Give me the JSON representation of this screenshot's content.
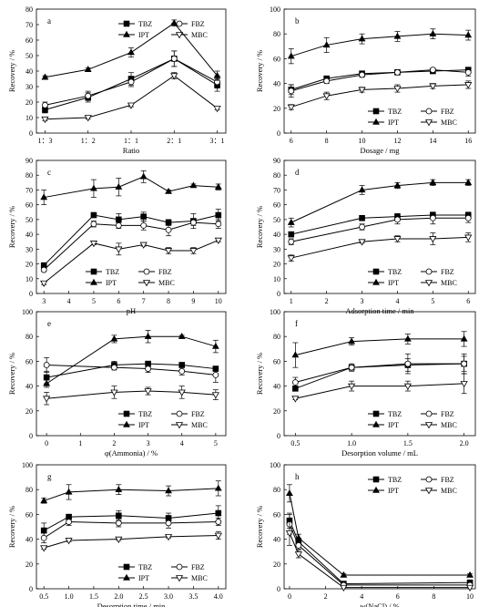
{
  "legend_order": [
    "TBZ",
    "FBZ",
    "IPT",
    "MBC"
  ],
  "chart_data": [
    {
      "type": "line",
      "panel": "a",
      "xlabel": "Ratio",
      "ylabel": "Recovery / %",
      "categories": [
        "1：3",
        "1：2",
        "1：1",
        "2：1",
        "3：1"
      ],
      "x": [
        0,
        1,
        2,
        3,
        4
      ],
      "xlim": [
        -0.2,
        4.2
      ],
      "xticks": [
        0,
        1,
        2,
        3,
        4
      ],
      "xtick_labels": [
        "1：3",
        "1：2",
        "1：1",
        "2：1",
        "3：1"
      ],
      "ylim": [
        0,
        80
      ],
      "yticks": [
        0,
        10,
        20,
        30,
        40,
        50,
        60,
        70,
        80
      ],
      "series": [
        {
          "name": "TBZ",
          "marker": "square-filled",
          "values": [
            15,
            23,
            35,
            48,
            31
          ],
          "err": [
            2,
            3,
            4,
            5,
            4
          ]
        },
        {
          "name": "FBZ",
          "marker": "circle-open",
          "values": [
            18,
            24,
            33,
            48,
            33
          ],
          "err": [
            2,
            3,
            3,
            5,
            4
          ]
        },
        {
          "name": "IPT",
          "marker": "triangle-filled",
          "values": [
            36,
            41,
            52,
            71,
            37
          ],
          "err": [
            1,
            1,
            3,
            2,
            3
          ]
        },
        {
          "name": "MBC",
          "marker": "triangle-down-open",
          "values": [
            9,
            10,
            18,
            37,
            16
          ],
          "err": [
            1,
            1,
            1,
            2,
            1
          ]
        }
      ],
      "legend": "top-right"
    },
    {
      "type": "line",
      "panel": "b",
      "xlabel": "Dosage / mg",
      "ylabel": "Recovery / %",
      "x": [
        6,
        8,
        10,
        12,
        14,
        16
      ],
      "xlim": [
        5.6,
        16.4
      ],
      "xticks": [
        6,
        8,
        10,
        12,
        14,
        16
      ],
      "xtick_labels": [
        "6",
        "8",
        "10",
        "12",
        "14",
        "16"
      ],
      "ylim": [
        0,
        100
      ],
      "yticks": [
        0,
        20,
        40,
        60,
        80,
        100
      ],
      "series": [
        {
          "name": "TBZ",
          "marker": "square-filled",
          "values": [
            35,
            44,
            48,
            49,
            50,
            51
          ],
          "err": [
            4,
            2,
            2,
            2,
            2,
            2
          ]
        },
        {
          "name": "FBZ",
          "marker": "circle-open",
          "values": [
            34,
            42,
            47,
            49,
            51,
            49
          ],
          "err": [
            5,
            2,
            2,
            2,
            1,
            3
          ]
        },
        {
          "name": "IPT",
          "marker": "triangle-filled",
          "values": [
            62,
            71,
            76,
            78,
            80,
            79
          ],
          "err": [
            6,
            6,
            4,
            4,
            4,
            4
          ]
        },
        {
          "name": "MBC",
          "marker": "triangle-down-open",
          "values": [
            21,
            30,
            35,
            36,
            38,
            39
          ],
          "err": [
            2,
            3,
            2,
            3,
            2,
            3
          ]
        }
      ],
      "legend": "bottom-right"
    },
    {
      "type": "line",
      "panel": "c",
      "xlabel": "pH",
      "ylabel": "Recovery / %",
      "x": [
        3,
        5,
        6,
        7,
        8,
        9,
        10
      ],
      "xlim": [
        2.7,
        10.3
      ],
      "xticks": [
        3,
        4,
        5,
        6,
        7,
        8,
        9,
        10
      ],
      "xtick_labels": [
        "3",
        "4",
        "5",
        "6",
        "7",
        "8",
        "9",
        "10"
      ],
      "ylim": [
        0,
        90
      ],
      "yticks": [
        0,
        10,
        20,
        30,
        40,
        50,
        60,
        70,
        80,
        90
      ],
      "series": [
        {
          "name": "TBZ",
          "marker": "square-filled",
          "values": [
            19,
            53,
            50,
            52,
            48,
            49,
            53
          ],
          "err": [
            1,
            1,
            4,
            3,
            2,
            5,
            4
          ]
        },
        {
          "name": "FBZ",
          "marker": "circle-open",
          "values": [
            16,
            47,
            46,
            46,
            43,
            48,
            47
          ],
          "err": [
            1,
            2,
            2,
            3,
            4,
            2,
            3
          ]
        },
        {
          "name": "IPT",
          "marker": "triangle-filled",
          "values": [
            65,
            71,
            72,
            79,
            69,
            73,
            72
          ],
          "err": [
            5,
            6,
            6,
            4,
            1,
            1,
            2
          ]
        },
        {
          "name": "MBC",
          "marker": "triangle-down-open",
          "values": [
            7,
            34,
            30,
            33,
            29,
            29,
            36
          ],
          "err": [
            1,
            1,
            4,
            1,
            2,
            2,
            1
          ]
        }
      ],
      "legend": "bottom-center"
    },
    {
      "type": "line",
      "panel": "d",
      "xlabel": "Adsorption time / min",
      "ylabel": "Recovery / %",
      "x": [
        1,
        3,
        4,
        5,
        6
      ],
      "xlim": [
        0.8,
        6.2
      ],
      "xticks": [
        1,
        2,
        3,
        4,
        5,
        6
      ],
      "xtick_labels": [
        "1",
        "2",
        "3",
        "4",
        "5",
        "6"
      ],
      "ylim": [
        0,
        90
      ],
      "yticks": [
        0,
        10,
        20,
        30,
        40,
        50,
        60,
        70,
        80,
        90
      ],
      "series": [
        {
          "name": "TBZ",
          "marker": "square-filled",
          "values": [
            40,
            51,
            52,
            53,
            53
          ],
          "err": [
            1,
            1,
            2,
            2,
            2
          ]
        },
        {
          "name": "FBZ",
          "marker": "circle-open",
          "values": [
            35,
            45,
            50,
            51,
            51
          ],
          "err": [
            2,
            2,
            3,
            4,
            3
          ]
        },
        {
          "name": "IPT",
          "marker": "triangle-filled",
          "values": [
            48,
            70,
            73,
            75,
            75
          ],
          "err": [
            3,
            3,
            2,
            2,
            2
          ]
        },
        {
          "name": "MBC",
          "marker": "triangle-down-open",
          "values": [
            24,
            35,
            37,
            37,
            38
          ],
          "err": [
            2,
            1,
            2,
            4,
            3
          ]
        }
      ],
      "legend": "bottom-right"
    },
    {
      "type": "line",
      "panel": "e",
      "xlabel": "φ(Ammonia) / %",
      "ylabel": "Recovery / %",
      "x": [
        0,
        2,
        3,
        4,
        5
      ],
      "xlim": [
        -0.3,
        5.3
      ],
      "xticks": [
        0,
        1,
        2,
        3,
        4,
        5
      ],
      "xtick_labels": [
        "0",
        "1",
        "2",
        "3",
        "4",
        "5"
      ],
      "ylim": [
        0,
        100
      ],
      "yticks": [
        0,
        20,
        40,
        60,
        80,
        100
      ],
      "series": [
        {
          "name": "TBZ",
          "marker": "square-filled",
          "values": [
            47,
            57,
            58,
            57,
            54
          ],
          "err": [
            5,
            3,
            2,
            2,
            2
          ]
        },
        {
          "name": "FBZ",
          "marker": "circle-open",
          "values": [
            57,
            55,
            54,
            52,
            49
          ],
          "err": [
            6,
            2,
            3,
            3,
            6
          ]
        },
        {
          "name": "IPT",
          "marker": "triangle-filled",
          "values": [
            42,
            78,
            80,
            80,
            72
          ],
          "err": [
            3,
            3,
            5,
            1,
            5
          ]
        },
        {
          "name": "MBC",
          "marker": "triangle-down-open",
          "values": [
            30,
            35,
            36,
            35,
            33
          ],
          "err": [
            5,
            5,
            3,
            5,
            4
          ]
        }
      ],
      "legend": "bottom-right"
    },
    {
      "type": "line",
      "panel": "f",
      "xlabel": "Desorption volume / mL",
      "ylabel": "Recovery / %",
      "x": [
        0.5,
        1.0,
        1.5,
        2.0
      ],
      "xlim": [
        0.4,
        2.1
      ],
      "xticks": [
        0.5,
        1.0,
        1.5,
        2.0
      ],
      "xtick_labels": [
        "0.5",
        "1.0",
        "1.5",
        "2.0"
      ],
      "ylim": [
        0,
        100
      ],
      "yticks": [
        0,
        20,
        40,
        60,
        80,
        100
      ],
      "series": [
        {
          "name": "TBZ",
          "marker": "square-filled",
          "values": [
            38,
            55,
            57,
            58
          ],
          "err": [
            2,
            2,
            5,
            6
          ]
        },
        {
          "name": "FBZ",
          "marker": "circle-open",
          "values": [
            43,
            55,
            58,
            58
          ],
          "err": [
            4,
            3,
            8,
            8
          ]
        },
        {
          "name": "IPT",
          "marker": "triangle-filled",
          "values": [
            65,
            76,
            78,
            78
          ],
          "err": [
            10,
            3,
            4,
            6
          ]
        },
        {
          "name": "MBC",
          "marker": "triangle-down-open",
          "values": [
            30,
            40,
            40,
            42
          ],
          "err": [
            1,
            4,
            4,
            8
          ]
        }
      ],
      "legend": "bottom-right"
    },
    {
      "type": "line",
      "panel": "g",
      "xlabel": "Desorption time / min",
      "ylabel": "Recovery / %",
      "x": [
        0.5,
        1.0,
        2.0,
        3.0,
        4.0
      ],
      "xlim": [
        0.35,
        4.15
      ],
      "xticks": [
        0.5,
        1.0,
        1.5,
        2.0,
        2.5,
        3.0,
        3.5,
        4.0
      ],
      "xtick_labels": [
        "0.5",
        "1.0",
        "1.5",
        "2.0",
        "2.5",
        "3.0",
        "3.5",
        "4.0"
      ],
      "ylim": [
        0,
        100
      ],
      "yticks": [
        0,
        20,
        40,
        60,
        80,
        100
      ],
      "series": [
        {
          "name": "TBZ",
          "marker": "square-filled",
          "values": [
            47,
            58,
            59,
            57,
            61
          ],
          "err": [
            6,
            2,
            4,
            4,
            6
          ]
        },
        {
          "name": "FBZ",
          "marker": "circle-open",
          "values": [
            41,
            54,
            53,
            53,
            54
          ],
          "err": [
            4,
            3,
            3,
            4,
            3
          ]
        },
        {
          "name": "IPT",
          "marker": "triangle-filled",
          "values": [
            71,
            78,
            80,
            79,
            81
          ],
          "err": [
            2,
            6,
            4,
            4,
            6
          ]
        },
        {
          "name": "MBC",
          "marker": "triangle-down-open",
          "values": [
            33,
            39,
            40,
            42,
            43
          ],
          "err": [
            1,
            1,
            1,
            1,
            3
          ]
        }
      ],
      "legend": "bottom-right"
    },
    {
      "type": "line",
      "panel": "h",
      "xlabel": "w(NaCl) / %",
      "ylabel": "Recovery / %",
      "x": [
        0,
        0.5,
        3,
        10
      ],
      "xlim": [
        -0.3,
        10.3
      ],
      "xticks": [
        0,
        2,
        4,
        6,
        8,
        10
      ],
      "xtick_labels": [
        "0",
        "2",
        "4",
        "6",
        "8",
        "10"
      ],
      "ylim": [
        0,
        100
      ],
      "yticks": [
        0,
        20,
        40,
        60,
        80,
        100
      ],
      "series": [
        {
          "name": "TBZ",
          "marker": "square-filled",
          "values": [
            55,
            38,
            4,
            5
          ],
          "err": [
            6,
            3,
            1,
            1
          ]
        },
        {
          "name": "FBZ",
          "marker": "circle-open",
          "values": [
            52,
            35,
            3,
            3
          ],
          "err": [
            8,
            3,
            1,
            1
          ]
        },
        {
          "name": "IPT",
          "marker": "triangle-filled",
          "values": [
            77,
            41,
            11,
            11
          ],
          "err": [
            7,
            3,
            1,
            1
          ]
        },
        {
          "name": "MBC",
          "marker": "triangle-down-open",
          "values": [
            45,
            28,
            1,
            1
          ],
          "err": [
            10,
            3,
            1,
            1
          ]
        }
      ],
      "legend": "top-right"
    }
  ]
}
